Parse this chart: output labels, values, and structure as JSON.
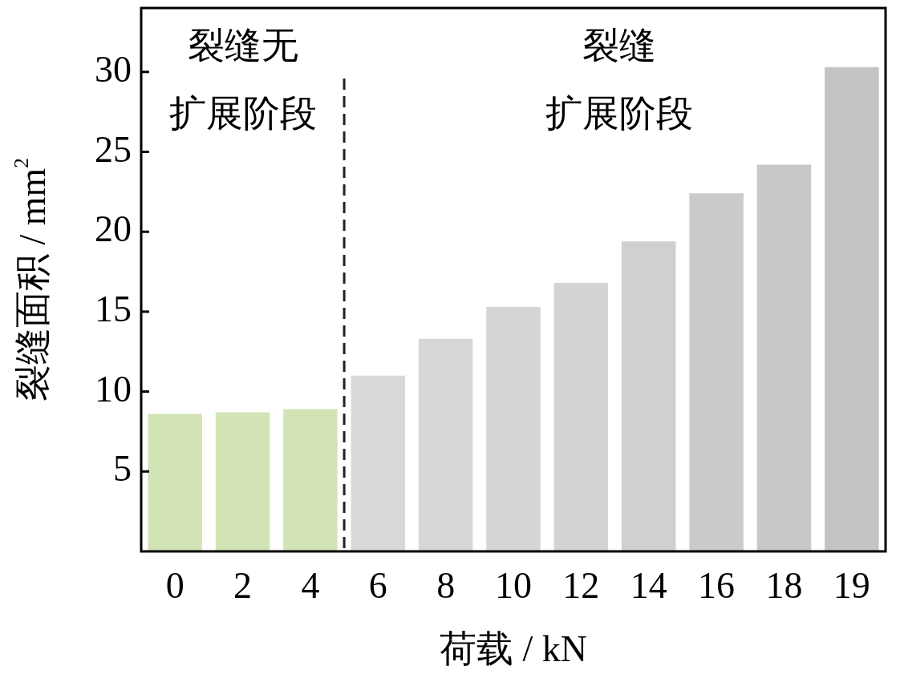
{
  "chart_data": {
    "type": "bar",
    "xlabel": "荷载 / kN",
    "ylabel": "裂缝面积 / mm$^{2}$",
    "categories": [
      "0",
      "2",
      "4",
      "6",
      "8",
      "10",
      "12",
      "14",
      "16",
      "18",
      "19"
    ],
    "values": [
      8.6,
      8.7,
      8.9,
      11.0,
      13.3,
      15.3,
      16.8,
      19.4,
      22.4,
      24.2,
      30.3
    ],
    "colors": [
      "#d2e4b5",
      "#d2e4b5",
      "#d2e4b5",
      "#d9d9d9",
      "#d7d7d7",
      "#d5d5d5",
      "#d3d3d3",
      "#d0d0d0",
      "#cbcbcb",
      "#c8c8c8",
      "#c4c4c4"
    ],
    "ylim": [
      0,
      34
    ],
    "yticks": [
      5,
      10,
      15,
      20,
      25,
      30
    ],
    "grid": false,
    "legend": false,
    "annotations": [
      "裂缝无扩展阶段",
      "裂缝扩展阶段"
    ]
  }
}
